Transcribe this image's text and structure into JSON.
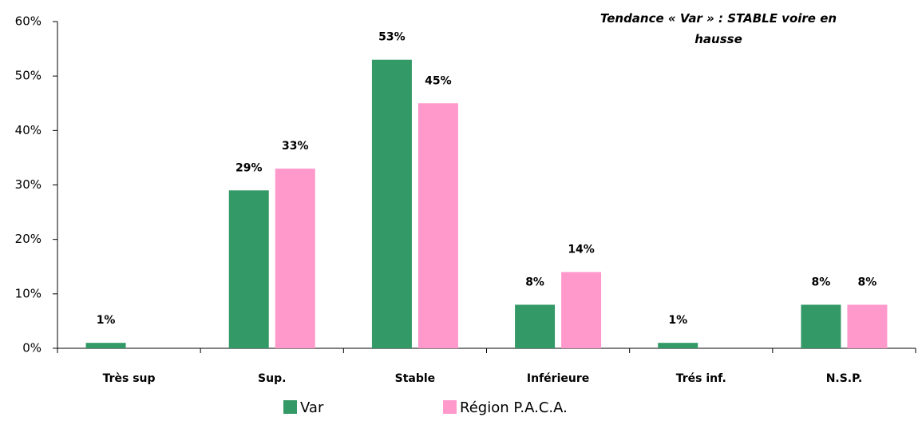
{
  "chart_data": {
    "type": "bar",
    "title": "Tendance « Var » : STABLE voire en hausse",
    "categories": [
      "Très sup",
      "Sup.",
      "Stable",
      "Inférieure",
      "Trés inf.",
      "N.S.P."
    ],
    "series": [
      {
        "name": "Var",
        "color": "#339966",
        "values": [
          1,
          29,
          53,
          8,
          1,
          8
        ],
        "value_labels": [
          "1%",
          "29%",
          "53%",
          "8%",
          "1%",
          "8%"
        ]
      },
      {
        "name": "Région P.A.C.A.",
        "color": "#ff99cc",
        "values": [
          null,
          33,
          45,
          14,
          null,
          8
        ],
        "value_labels": [
          null,
          "33%",
          "45%",
          "14%",
          null,
          "8%"
        ]
      }
    ],
    "ylim": [
      0,
      60
    ],
    "yticks": [
      {
        "value": 0,
        "label": "0%"
      },
      {
        "value": 10,
        "label": "10%"
      },
      {
        "value": 20,
        "label": "20%"
      },
      {
        "value": 30,
        "label": "30%"
      },
      {
        "value": 40,
        "label": "40%"
      },
      {
        "value": 50,
        "label": "50%"
      },
      {
        "value": 60,
        "label": "60%"
      }
    ],
    "grid": false,
    "legend": "bottom"
  }
}
